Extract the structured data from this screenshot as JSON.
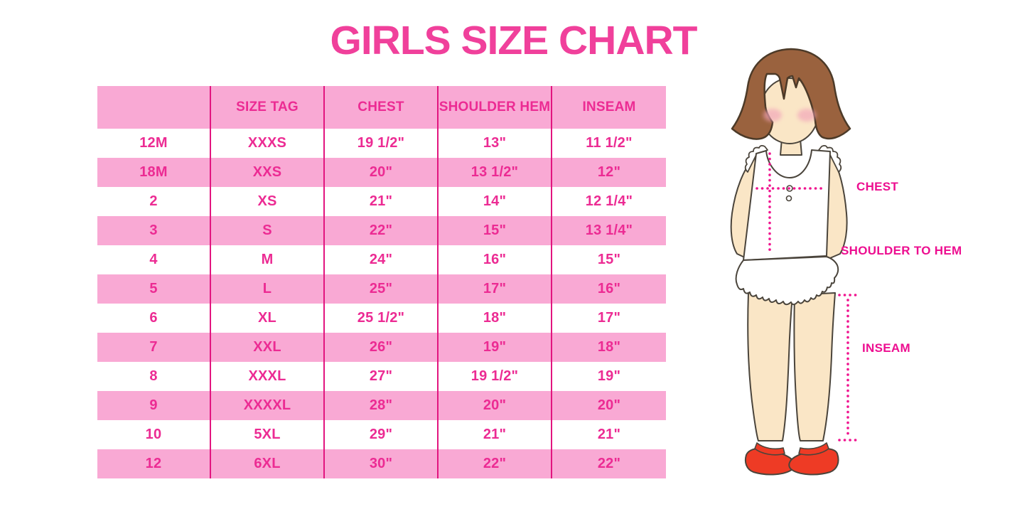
{
  "title": "GIRLS SIZE CHART",
  "colors": {
    "pink-band": "#F9A9D4",
    "magenta-text": "#EC2B93",
    "separator-line": "#E2157F",
    "title-pink": "#F0409B",
    "label-magenta": "#ED0E90",
    "hair-brown": "#9A623E",
    "hair-outline": "#4C3A28",
    "skin": "#FAE6C6",
    "blush": "#F2A3B9",
    "shoe-red": "#EE3B25",
    "outline": "#4A443B",
    "dotted-line": "#F0148F"
  },
  "chart_data": {
    "type": "table",
    "title": "GIRLS SIZE CHART",
    "columns": [
      "",
      "SIZE TAG",
      "CHEST",
      "SHOULDER HEM",
      "INSEAM"
    ],
    "rows": [
      [
        "12M",
        "XXXS",
        "19 1/2\"",
        "13\"",
        "11 1/2\""
      ],
      [
        "18M",
        "XXS",
        "20\"",
        "13 1/2\"",
        "12\""
      ],
      [
        "2",
        "XS",
        "21\"",
        "14\"",
        "12 1/4\""
      ],
      [
        "3",
        "S",
        "22\"",
        "15\"",
        "13 1/4\""
      ],
      [
        "4",
        "M",
        "24\"",
        "16\"",
        "15\""
      ],
      [
        "5",
        "L",
        "25\"",
        "17\"",
        "16\""
      ],
      [
        "6",
        "XL",
        "25 1/2\"",
        "18\"",
        "17\""
      ],
      [
        "7",
        "XXL",
        "26\"",
        "19\"",
        "18\""
      ],
      [
        "8",
        "XXXL",
        "27\"",
        "19 1/2\"",
        "19\""
      ],
      [
        "9",
        "XXXXL",
        "28\"",
        "20\"",
        "20\""
      ],
      [
        "10",
        "5XL",
        "29\"",
        "21\"",
        "21\""
      ],
      [
        "12",
        "6XL",
        "30\"",
        "22\"",
        "22\""
      ]
    ]
  },
  "figure": {
    "labels": {
      "chest": "CHEST",
      "shoulder_to_hem": "SHOULDER TO HEM",
      "inseam": "INSEAM"
    }
  }
}
